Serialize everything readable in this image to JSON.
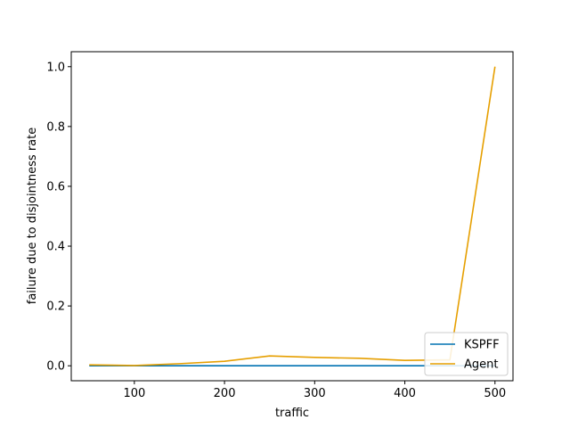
{
  "chart_data": {
    "type": "line",
    "title": "",
    "xlabel": "traffic",
    "ylabel": "failure due to disjointness rate",
    "xlim": [
      30,
      520
    ],
    "ylim": [
      -0.05,
      1.05
    ],
    "x_ticks": [
      100,
      200,
      300,
      400,
      500
    ],
    "y_ticks": [
      0.0,
      0.2,
      0.4,
      0.6,
      0.8,
      1.0
    ],
    "x_tick_labels": [
      "100",
      "200",
      "300",
      "400",
      "500"
    ],
    "y_tick_labels": [
      "0.0",
      "0.2",
      "0.4",
      "0.6",
      "0.8",
      "1.0"
    ],
    "grid": false,
    "legend_position": "lower-right",
    "x": [
      50,
      100,
      150,
      200,
      250,
      300,
      350,
      400,
      450,
      500
    ],
    "series": [
      {
        "name": "KSPFF",
        "color": "#0072b2",
        "values": [
          0,
          0,
          0,
          0,
          0,
          0,
          0,
          0,
          0,
          0
        ]
      },
      {
        "name": "Agent",
        "color": "#e69f00",
        "values": [
          0.003,
          0.001,
          0.007,
          0.015,
          0.033,
          0.028,
          0.025,
          0.018,
          0.02,
          1.0
        ]
      }
    ]
  }
}
